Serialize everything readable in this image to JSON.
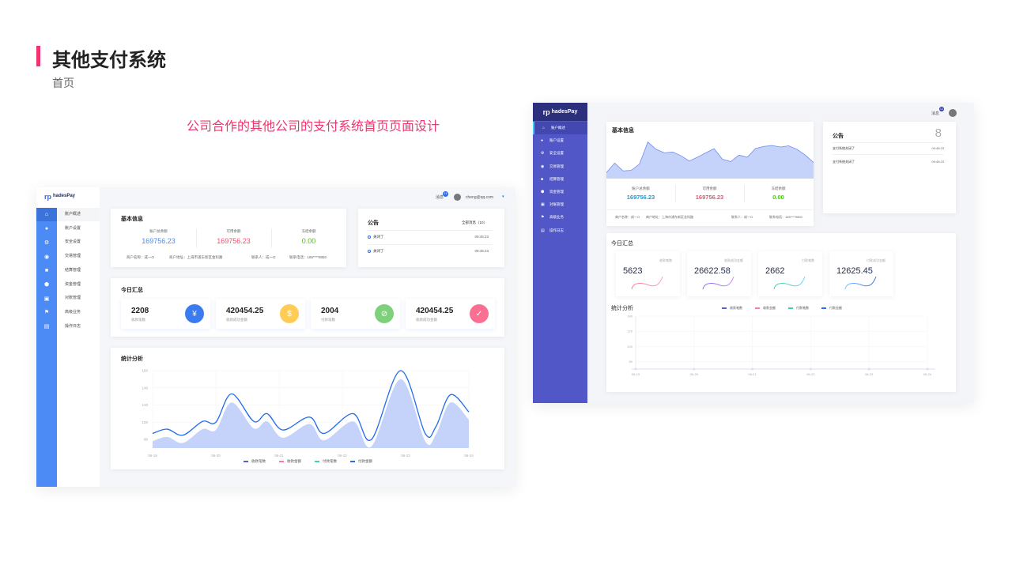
{
  "page": {
    "title": "其他支付系统",
    "subtitle": "首页",
    "description": "公司合作的其他公司的支付系统首页页面设计",
    "accent": "#f0356e"
  },
  "left": {
    "logo": "hadesPay",
    "nav": [
      "账户概述",
      "账户设置",
      "安全设置",
      "交易管理",
      "结算管理",
      "资金管理",
      "对账管理",
      "高级业务",
      "操作日志"
    ],
    "header": {
      "messages": "消息",
      "badge": "14",
      "user": "cheng@qq.com"
    },
    "basic": {
      "title": "基本信息",
      "balances": [
        {
          "label": "账户总余额",
          "value": "169756.23",
          "color": "#4c8bf5"
        },
        {
          "label": "可用余额",
          "value": "169756.23",
          "color": "#f0506e"
        },
        {
          "label": "冻结余额",
          "value": "0.00",
          "color": "#52c41a"
        }
      ],
      "info": [
        "商户名称：成一O",
        "商户地址：上海市浦东新区金科路",
        "联系人：成一O",
        "联系电话：185****9850"
      ]
    },
    "notice": {
      "title": "公告",
      "all": "全部消息（10）",
      "items": [
        {
          "text": "关闭了",
          "time": "09:45:23"
        },
        {
          "text": "关闭了",
          "time": "09:45:23"
        }
      ]
    },
    "today": {
      "title": "今日汇总",
      "stats": [
        {
          "value": "2208",
          "label": "收款笔数",
          "color": "#3a7cf0",
          "icon": "¥"
        },
        {
          "value": "420454.25",
          "label": "收款成功金额",
          "color": "#ffcc55",
          "icon": "$"
        },
        {
          "value": "2004",
          "label": "付款笔数",
          "color": "#7ed07a",
          "icon": "⊘"
        },
        {
          "value": "420454.25",
          "label": "收款成功金额",
          "color": "#fb6f93",
          "icon": "✓"
        }
      ]
    },
    "analysis": {
      "title": "统计分析"
    }
  },
  "right": {
    "logo": "hadesPay",
    "nav": [
      "账户概述",
      "账户设置",
      "安全设置",
      "交易管理",
      "结算管理",
      "资金管理",
      "对账管理",
      "高级业务",
      "操作日志"
    ],
    "header": {
      "messages": "消息",
      "badge": "14"
    },
    "basic": {
      "title": "基本信息",
      "balances": [
        {
          "label": "账户总余额",
          "value": "169756.23",
          "color": "#13a0d8"
        },
        {
          "label": "可用余额",
          "value": "169756.23",
          "color": "#f0506e"
        },
        {
          "label": "冻结余额",
          "value": "0.00",
          "color": "#52c41a"
        }
      ],
      "info": [
        "商户名称：成一O",
        "商户地址：上海市浦东新区金科路",
        "联系人：成一O",
        "联系电话：185****9850"
      ]
    },
    "notice": {
      "title": "公告",
      "count": "8",
      "items": [
        {
          "text": "支付系统关闭了",
          "time": "09:45:23"
        },
        {
          "text": "支付系统关闭了",
          "time": "09:45:23"
        }
      ]
    },
    "today": {
      "title": "今日汇总",
      "stats": [
        {
          "value": "5623",
          "label": "收款笔数",
          "c1": "#ff7b9c",
          "c2": "#ff9fb3"
        },
        {
          "value": "26622.58",
          "label": "收款成功金额",
          "c1": "#7b6cf0",
          "c2": "#d08cf0"
        },
        {
          "value": "2662",
          "label": "付款笔数",
          "c1": "#3ed6a0",
          "c2": "#6ad8f5"
        },
        {
          "value": "12625.45",
          "label": "付款成功金额",
          "c1": "#7cc4ff",
          "c2": "#3a6cf0"
        }
      ]
    },
    "analysis": {
      "title": "统计分析"
    }
  },
  "chart_data": [
    {
      "type": "area",
      "title": "统计分析",
      "x_ticks": [
        "06-19",
        "06-20",
        "06-21",
        "06-22",
        "06-23",
        "06-24"
      ],
      "y_ticks": [
        80,
        100,
        120,
        140,
        160
      ],
      "ylim": [
        70,
        160
      ],
      "legend": [
        "收款笔数",
        "收款金额",
        "付款笔数",
        "付款金额"
      ],
      "legend_colors": [
        "#5a5fd0",
        "#ff7b9c",
        "#3ed6a0",
        "#2a6cf0"
      ],
      "x": [
        0,
        0.23,
        0.48,
        0.79,
        1,
        1.25,
        1.6,
        1.81,
        2.06,
        2.48,
        2.71,
        3.17,
        3.46,
        3.92,
        4.31,
        4.48,
        4.71,
        5
      ],
      "series": [
        {
          "name": "付款金额",
          "values": [
            87,
            92,
            85,
            101,
            100,
            133,
            101,
            110,
            91,
            106,
            87,
            110,
            80,
            160,
            87,
            95,
            132,
            112
          ]
        },
        {
          "name": "收款笔数",
          "values": [
            78,
            83,
            76,
            92,
            91,
            123,
            93,
            101,
            82,
            98,
            79,
            101,
            72,
            150,
            78,
            86,
            123,
            103
          ]
        }
      ]
    },
    {
      "type": "area",
      "title": "基本信息 trend",
      "values": [
        15,
        48,
        21,
        23,
        45,
        120,
        95,
        83,
        86,
        73,
        55,
        68,
        83,
        97,
        61,
        53,
        75,
        68,
        98,
        105,
        108,
        103,
        107,
        95,
        75,
        50
      ],
      "ylim": [
        0,
        130
      ]
    },
    {
      "type": "line",
      "title": "统计分析",
      "x_ticks": [
        "06-19",
        "06-20",
        "06-21",
        "06-22",
        "06-23",
        "06-24"
      ],
      "y_ticks": [
        80,
        100,
        120,
        140
      ],
      "ylim": [
        70,
        140
      ],
      "legend": [
        "收款笔数",
        "收款金额",
        "付款笔数",
        "付款金额"
      ],
      "legend_colors": [
        "#5a5fd0",
        "#ff7b9c",
        "#3ed6a0",
        "#2a6cf0"
      ],
      "series": []
    }
  ]
}
